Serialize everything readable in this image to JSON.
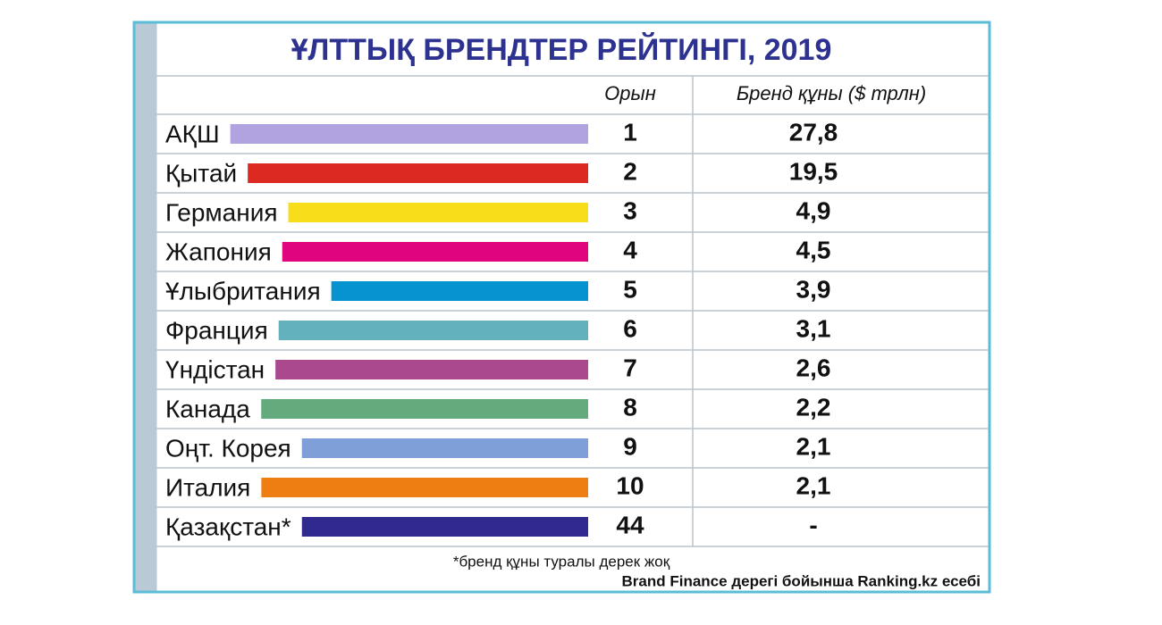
{
  "title": "ҰЛТТЫҚ БРЕНДТЕР РЕЙТИНГІ, 2019",
  "header": {
    "rank": "Орын",
    "value": "Бренд құны ($ трлн)"
  },
  "rows": [
    {
      "country": "АҚШ",
      "color": "#b1a3e0",
      "rank": "1",
      "value": "27,8"
    },
    {
      "country": "Қытай",
      "color": "#dc2a22",
      "rank": "2",
      "value": "19,5"
    },
    {
      "country": "Германия",
      "color": "#f8dd1a",
      "rank": "3",
      "value": "4,9"
    },
    {
      "country": "Жапония",
      "color": "#e0047f",
      "rank": "4",
      "value": "4,5"
    },
    {
      "country": "Ұлыбритания",
      "color": "#0793cf",
      "rank": "5",
      "value": "3,9"
    },
    {
      "country": "Франция",
      "color": "#63b1bc",
      "rank": "6",
      "value": "3,1"
    },
    {
      "country": "Үндістан",
      "color": "#aa498d",
      "rank": "7",
      "value": "2,6"
    },
    {
      "country": "Канада",
      "color": "#63ab7c",
      "rank": "8",
      "value": "2,2"
    },
    {
      "country": "Оңт. Корея",
      "color": "#7f9fd8",
      "rank": "9",
      "value": "2,1"
    },
    {
      "country": "Италия",
      "color": "#ee7d12",
      "rank": "10",
      "value": "2,1"
    },
    {
      "country": "Қазақстан*",
      "color": "#302a8f",
      "rank": "44",
      "value": "-"
    }
  ],
  "footnote": "*бренд құны туралы дерек жоқ",
  "source": "Brand Finance дерегі бойынша Ranking.kz есебі"
}
